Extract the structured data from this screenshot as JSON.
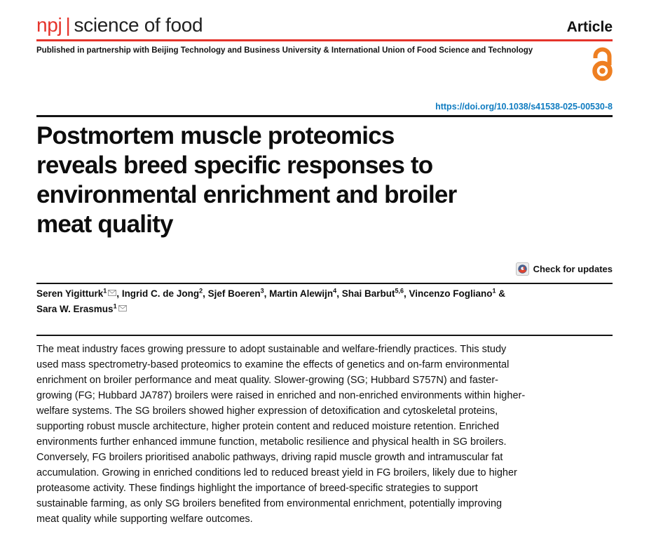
{
  "colors": {
    "brand_red": "#e5342b",
    "link_blue": "#0e7bc0",
    "oa_orange": "#ee7f22",
    "rule_black": "#141414",
    "text": "#1a1a1a",
    "badge_bg": "#ececec",
    "mail_gray": "#8c8c8c",
    "crossmark_blue": "#47618e",
    "crossmark_red": "#e0432f"
  },
  "header": {
    "journal_prefix": "npj",
    "journal_separator": "|",
    "journal_name": "science of food",
    "article_type": "Article",
    "partnership": "Published in partnership with Beijing Technology and Business University & International Union of Food Science and Technology"
  },
  "doi": {
    "url_text": "https://doi.org/10.1038/s41538-025-00530-8"
  },
  "title_lines": [
    "Postmortem muscle proteomics",
    "reveals breed specific responses to",
    "environmental enrichment and broiler",
    "meat quality"
  ],
  "check_for_updates": {
    "label": "Check for updates"
  },
  "authors": {
    "segments": [
      {
        "name": "Seren Yigitturk",
        "sup": "1",
        "email": true,
        "sep": ", "
      },
      {
        "name": "Ingrid C. de Jong",
        "sup": "2",
        "email": false,
        "sep": ", "
      },
      {
        "name": "Sjef Boeren",
        "sup": "3",
        "email": false,
        "sep": ", "
      },
      {
        "name": "Martin Alewijn",
        "sup": "4",
        "email": false,
        "sep": ", "
      },
      {
        "name": "Shai Barbut",
        "sup": "5,6",
        "email": false,
        "sep": ", "
      },
      {
        "name": "Vincenzo Fogliano",
        "sup": "1",
        "email": false,
        "sep": " &\n"
      },
      {
        "name": "Sara W. Erasmus",
        "sup": "1",
        "email": true,
        "sep": ""
      }
    ]
  },
  "abstract": {
    "text": "The meat industry faces growing pressure to adopt sustainable and welfare-friendly practices. This study used mass spectrometry-based proteomics to examine the effects of genetics and on-farm environmental enrichment on broiler performance and meat quality. Slower-growing (SG; Hubbard S757N) and faster-growing (FG; Hubbard JA787) broilers were raised in enriched and non-enriched environments within higher-welfare systems. The SG broilers showed higher expression of detoxification and cytoskeletal proteins, supporting robust muscle architecture, higher protein content and reduced moisture retention. Enriched environments further enhanced immune function, metabolic resilience and physical health in SG broilers. Conversely, FG broilers prioritised anabolic pathways, driving rapid muscle growth and intramuscular fat accumulation. Growing in enriched conditions led to reduced breast yield in FG broilers, likely due to higher proteasome activity. These findings highlight the importance of breed-specific strategies to support sustainable farming, as only SG broilers benefited from environmental enrichment, potentially improving meat quality while supporting welfare outcomes."
  }
}
